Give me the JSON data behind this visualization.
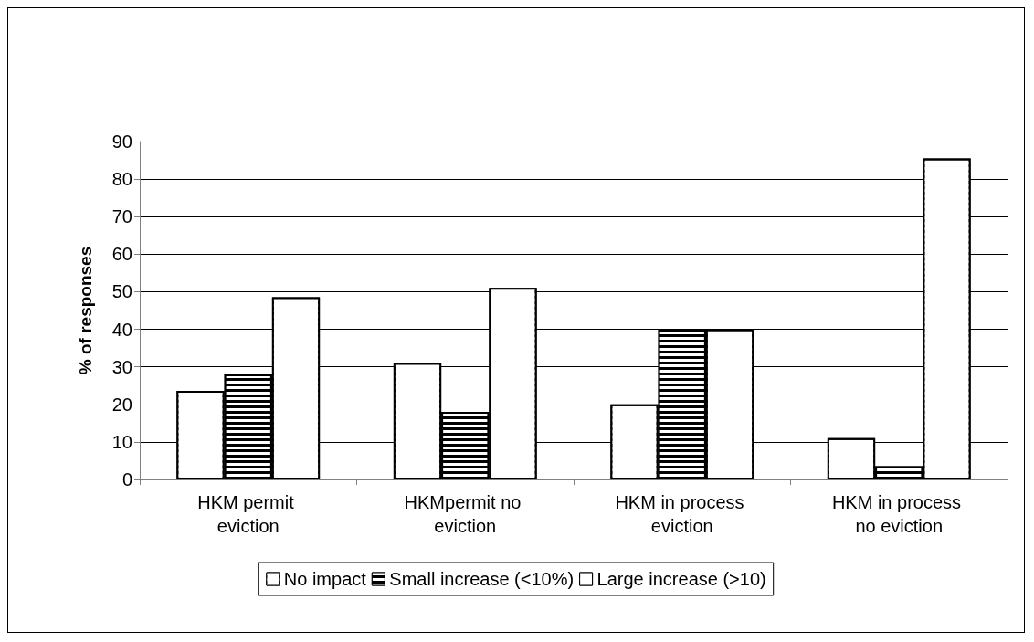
{
  "chart_data": {
    "type": "bar",
    "ylabel": "% of responses",
    "categories": [
      "HKM permit eviction",
      "HKMpermit no eviction",
      "HKM in process eviction",
      "HKM in process no eviction"
    ],
    "series": [
      {
        "name": "No impact",
        "color": "#ffffff",
        "values": [
          23.6,
          31,
          20,
          11
        ]
      },
      {
        "name": "Small increase (<10%)",
        "color": "#000000",
        "values": [
          28,
          18,
          40,
          3.5
        ]
      },
      {
        "name": "Large increase (>10)",
        "color": "#ffffff",
        "values": [
          48.5,
          51,
          40,
          85.5
        ]
      }
    ],
    "ylim": [
      0,
      90
    ],
    "yticks": [
      0,
      10,
      20,
      30,
      40,
      50,
      60,
      70,
      80,
      90
    ],
    "grid": "y",
    "legend": "bottom"
  }
}
